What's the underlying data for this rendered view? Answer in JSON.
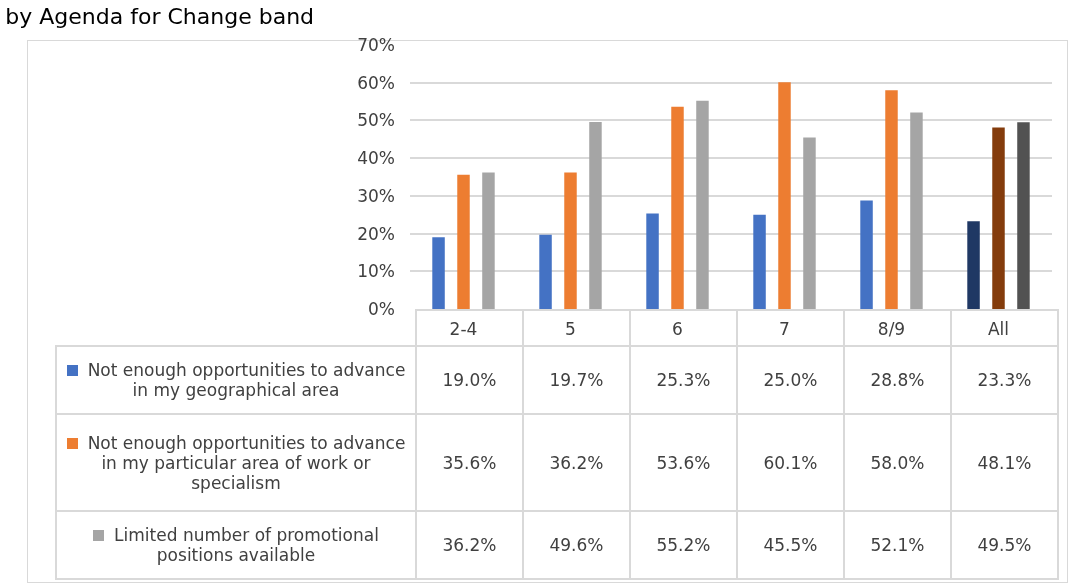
{
  "chart_data": {
    "type": "bar",
    "title": "by Agenda for Change band",
    "categories": [
      "2-4",
      "5",
      "6",
      "7",
      "8/9",
      "All"
    ],
    "series": [
      {
        "name": "Not enough opportunities to advance in my geographical area",
        "color": "#4472c4",
        "colors": [
          "#4472c4",
          "#4472c4",
          "#4472c4",
          "#4472c4",
          "#4472c4",
          "#1f3864"
        ],
        "values": [
          19.0,
          19.7,
          25.3,
          25.0,
          28.8,
          23.3
        ],
        "value_labels": [
          "19.0%",
          "19.7%",
          "25.3%",
          "25.0%",
          "28.8%",
          "23.3%"
        ]
      },
      {
        "name": "Not enough opportunities to advance in my particular area of work or specialism",
        "color": "#ed7d31",
        "colors": [
          "#ed7d31",
          "#ed7d31",
          "#ed7d31",
          "#ed7d31",
          "#ed7d31",
          "#843c0c"
        ],
        "values": [
          35.6,
          36.2,
          53.6,
          60.1,
          58.0,
          48.1
        ],
        "value_labels": [
          "35.6%",
          "36.2%",
          "53.6%",
          "60.1%",
          "58.0%",
          "48.1%"
        ]
      },
      {
        "name": "Limited number of promotional positions available",
        "color": "#a5a5a5",
        "colors": [
          "#a5a5a5",
          "#a5a5a5",
          "#a5a5a5",
          "#a5a5a5",
          "#a5a5a5",
          "#525252"
        ],
        "values": [
          36.2,
          49.6,
          55.2,
          45.5,
          52.1,
          49.5
        ],
        "value_labels": [
          "36.2%",
          "49.6%",
          "55.2%",
          "45.5%",
          "52.1%",
          "49.5%"
        ]
      }
    ],
    "ylim": [
      0,
      70
    ],
    "yticks": [
      {
        "value": 0,
        "label": "0%"
      },
      {
        "value": 10,
        "label": "10%"
      },
      {
        "value": 20,
        "label": "20%"
      },
      {
        "value": 30,
        "label": "30%"
      },
      {
        "value": 40,
        "label": "40%"
      },
      {
        "value": 50,
        "label": "50%"
      },
      {
        "value": 60,
        "label": "60%"
      },
      {
        "value": 70,
        "label": "70%"
      }
    ],
    "grid": "y",
    "legend": "bottom"
  }
}
